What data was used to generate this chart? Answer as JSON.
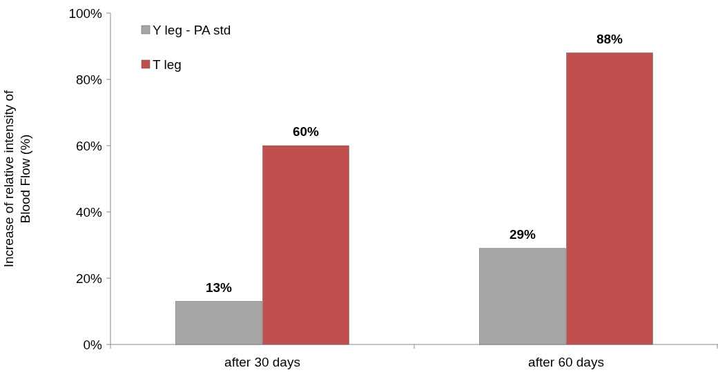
{
  "chart_data": {
    "type": "bar",
    "ylabel": "Increase of relative intensity of Blood Flow (%)",
    "categories": [
      "after 30 days",
      "after 60 days"
    ],
    "series": [
      {
        "name": "Y leg - PA std",
        "color": "#a6a6a6",
        "values": [
          13,
          29
        ],
        "value_labels": [
          "13%",
          "29%"
        ]
      },
      {
        "name": "T leg",
        "color": "#c0504d",
        "values": [
          60,
          88
        ],
        "value_labels": [
          "60%",
          "88%"
        ]
      }
    ],
    "ylim": [
      0,
      100
    ],
    "yticks": [
      {
        "value": 0,
        "label": "0%"
      },
      {
        "value": 20,
        "label": "20%"
      },
      {
        "value": 40,
        "label": "40%"
      },
      {
        "value": 60,
        "label": "60%"
      },
      {
        "value": 80,
        "label": "80%"
      },
      {
        "value": 100,
        "label": "100%"
      }
    ],
    "legend": "top left",
    "grid": false
  }
}
